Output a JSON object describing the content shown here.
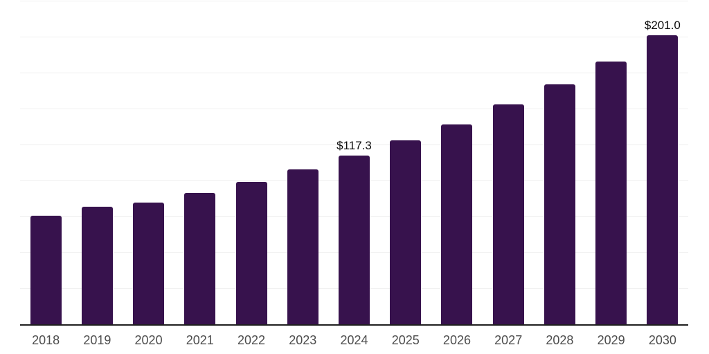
{
  "chart_data": {
    "type": "bar",
    "title": "",
    "xlabel": "",
    "ylabel": "",
    "categories": [
      "2018",
      "2019",
      "2020",
      "2021",
      "2022",
      "2023",
      "2024",
      "2025",
      "2026",
      "2027",
      "2028",
      "2029",
      "2030"
    ],
    "values": [
      75.6,
      81.6,
      84.8,
      91.2,
      98.9,
      107.7,
      117.3,
      128.0,
      139.0,
      153.0,
      166.7,
      182.6,
      201.0
    ],
    "value_labels": [
      {
        "category": "2024",
        "text": "$117.3"
      },
      {
        "category": "2030",
        "text": "$201.0"
      }
    ],
    "ylim": [
      0,
      225
    ],
    "gridline_step": 25,
    "grid": "horizontal-only",
    "legend": "none",
    "y_tick_labels": "none",
    "colors": {
      "bar": "#37124D",
      "gridline": "#efefef",
      "axis_line": "#1f1f1f",
      "x_tick_text": "#4d4d4d",
      "value_label_text": "#0d0d0d",
      "background": "#ffffff"
    }
  }
}
